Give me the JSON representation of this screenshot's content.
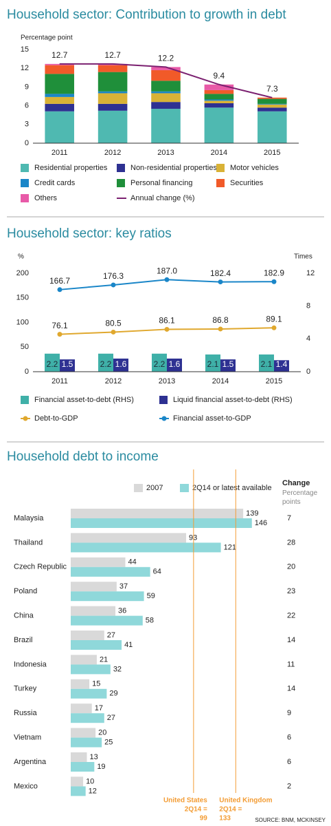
{
  "chart_data": [
    {
      "type": "bar",
      "stacked": true,
      "title": "Household sector: Contribution to growth in debt",
      "y_label": "Percentage point",
      "categories": [
        "2011",
        "2012",
        "2013",
        "2014",
        "2015"
      ],
      "ylim": [
        0,
        15
      ],
      "yticks": [
        0,
        3,
        6,
        9,
        12,
        15
      ],
      "grid": false,
      "series": [
        {
          "name": "Residential properties",
          "color": "#4fb9b1",
          "values": [
            5.1,
            5.2,
            5.5,
            5.7,
            5.1
          ]
        },
        {
          "name": "Non-residential properties",
          "color": "#2e3192",
          "values": [
            1.2,
            1.1,
            1.1,
            0.7,
            0.6
          ]
        },
        {
          "name": "Motor vehicles",
          "color": "#d9b236",
          "values": [
            1.1,
            1.7,
            1.4,
            0.4,
            0.5
          ]
        },
        {
          "name": "Credit cards",
          "color": "#1a86c8",
          "values": [
            0.5,
            0.3,
            0.3,
            0.2,
            0.1
          ]
        },
        {
          "name": "Personal financing",
          "color": "#1f8f3a",
          "values": [
            3.2,
            3.1,
            1.7,
            0.9,
            0.8
          ]
        },
        {
          "name": "Securities",
          "color": "#f15a29",
          "values": [
            1.4,
            1.1,
            1.7,
            0.6,
            0.2
          ]
        },
        {
          "name": "Others",
          "color": "#e85aa8",
          "values": [
            0.2,
            0.2,
            0.5,
            0.9,
            0.0
          ]
        },
        {
          "name": "Annual change (%)",
          "type": "line",
          "labels": true,
          "color": "#7b2070",
          "values": [
            12.7,
            12.7,
            12.2,
            9.4,
            7.3
          ]
        }
      ]
    },
    {
      "type": "bar",
      "title": "Household sector: key ratios",
      "y_label": "%",
      "y2_label": "Times",
      "categories": [
        "2011",
        "2012",
        "2013",
        "2014",
        "2015"
      ],
      "ylim": [
        0,
        200
      ],
      "yticks": [
        0,
        50,
        100,
        150,
        200
      ],
      "y2lim": [
        0,
        12
      ],
      "y2ticks": [
        0,
        4,
        8,
        12
      ],
      "grid": false,
      "series": [
        {
          "name": "Financial asset-to-debt (RHS)",
          "axis": "y2",
          "labels": true,
          "color": "#3fb0a8",
          "values": [
            2.2,
            2.2,
            2.2,
            2.1,
            2.1
          ]
        },
        {
          "name": "Liquid financial asset-to-debt (RHS)",
          "axis": "y2",
          "labels": true,
          "color": "#2e3192",
          "values": [
            1.5,
            1.6,
            1.6,
            1.5,
            1.4
          ]
        },
        {
          "name": "Debt-to-GDP",
          "type": "line",
          "markers": true,
          "labels": true,
          "color": "#e0a82e",
          "values": [
            76.1,
            80.5,
            86.1,
            86.8,
            89.1
          ]
        },
        {
          "name": "Financial asset-to-GDP",
          "type": "line",
          "markers": true,
          "labels": true,
          "color": "#1a86c8",
          "values": [
            166.7,
            176.3,
            187.0,
            182.4,
            182.9
          ],
          "value_labels": [
            "166.7",
            "176.3",
            "187.0",
            "182.4",
            "182.9"
          ]
        }
      ]
    },
    {
      "type": "bar",
      "horizontal": true,
      "title": "Household debt to income",
      "categories": [
        "Malaysia",
        "Thailand",
        "Czech Republic",
        "Poland",
        "China",
        "Brazil",
        "Indonesia",
        "Turkey",
        "Russia",
        "Vietnam",
        "Argentina",
        "Mexico"
      ],
      "xlim": [
        0,
        150
      ],
      "series": [
        {
          "name": "2007",
          "color": "#d9d9d9",
          "values": [
            139,
            93,
            44,
            37,
            36,
            27,
            21,
            15,
            17,
            20,
            13,
            10
          ]
        },
        {
          "name": "2Q14 or latest available",
          "color": "#8fd8da",
          "values": [
            146,
            121,
            64,
            59,
            58,
            41,
            32,
            29,
            27,
            25,
            19,
            12
          ]
        }
      ],
      "change_title": "Change",
      "change_subtitle": "Percentage points",
      "change": [
        7,
        28,
        20,
        23,
        22,
        14,
        11,
        14,
        9,
        6,
        6,
        2
      ],
      "reference_lines": [
        {
          "label": "United States",
          "sublabel": "2Q14 =",
          "value": 99,
          "color": "#f39c34"
        },
        {
          "label": "United Kingdom",
          "sublabel": "2Q14 =",
          "value": 133,
          "color": "#f39c34"
        }
      ]
    }
  ],
  "source": "SOURCE: BNM, MCKINSEY"
}
